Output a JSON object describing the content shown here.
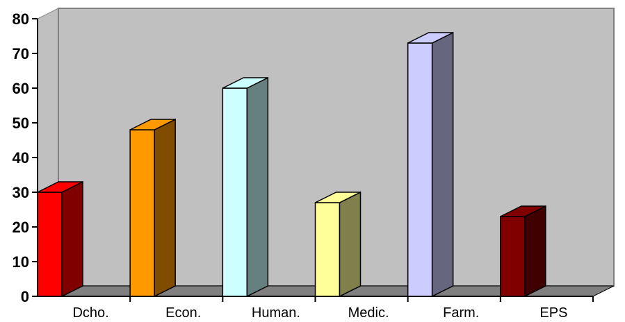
{
  "chart_data": {
    "type": "bar",
    "title": "",
    "xlabel": "",
    "ylabel": "",
    "categories": [
      "Dcho.",
      "Econ.",
      "Human.",
      "Medic.",
      "Farm.",
      "EPS"
    ],
    "values": [
      30,
      48,
      60,
      27,
      73,
      23
    ],
    "ylim": [
      0,
      80
    ],
    "yticks": [
      "0",
      "10",
      "20",
      "30",
      "40",
      "50",
      "60",
      "70",
      "80"
    ],
    "grid": false,
    "three_d": true,
    "colors": {
      "front": [
        "#ff0000",
        "#ff9900",
        "#ccffff",
        "#ffff99",
        "#ccccff",
        "#800000"
      ],
      "side": [
        "#800000",
        "#7f4c00",
        "#668080",
        "#80804d",
        "#666680",
        "#400000"
      ],
      "wall": "#c0c0c0",
      "floor": "#808080"
    }
  }
}
